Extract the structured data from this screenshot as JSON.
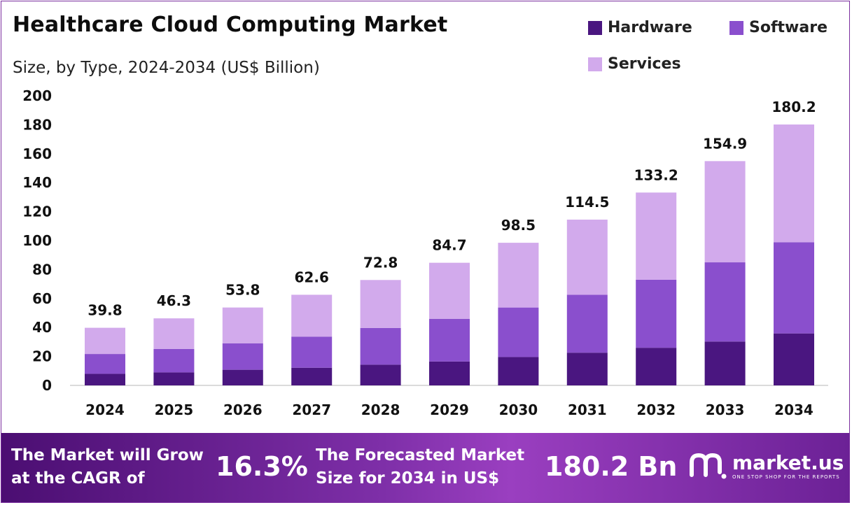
{
  "title": "Healthcare Cloud Computing Market",
  "subtitle": "Size, by Type, 2024-2034 (US$ Billion)",
  "colors": {
    "hardware": "#4a1680",
    "software": "#8a4fcd",
    "services": "#d2aaec",
    "accent": "#7b2f9f"
  },
  "chart_data": {
    "type": "bar",
    "stacked": true,
    "categories": [
      "2024",
      "2025",
      "2026",
      "2027",
      "2028",
      "2029",
      "2030",
      "2031",
      "2032",
      "2033",
      "2034"
    ],
    "series": [
      {
        "name": "Hardware",
        "values": [
          8.0,
          9.0,
          10.8,
          12.2,
          14.3,
          16.5,
          19.6,
          22.6,
          26.0,
          30.3,
          35.9
        ]
      },
      {
        "name": "Software",
        "values": [
          13.7,
          16.2,
          18.3,
          21.5,
          25.4,
          29.5,
          34.2,
          40.0,
          47.0,
          54.7,
          63.0
        ]
      },
      {
        "name": "Services",
        "values": [
          18.1,
          21.1,
          24.7,
          28.9,
          33.1,
          38.7,
          44.7,
          51.9,
          60.2,
          69.9,
          81.3
        ]
      }
    ],
    "totals": [
      "39.8",
      "46.3",
      "53.8",
      "62.6",
      "72.8",
      "84.7",
      "98.5",
      "114.5",
      "133.2",
      "154.9",
      "180.2"
    ],
    "ylim": [
      0,
      200
    ],
    "yticks": [
      "0",
      "20",
      "40",
      "60",
      "80",
      "100",
      "120",
      "140",
      "160",
      "180",
      "200"
    ],
    "legend": [
      "Hardware",
      "Software",
      "Services"
    ],
    "legend_position": "top-right",
    "grid": false
  },
  "banner": {
    "cagr_text": "The Market will Grow at the CAGR of",
    "cagr_value": "16.3%",
    "forecast_text": "The Forecasted Market Size for 2034 in US$",
    "forecast_value": "180.2 Bn",
    "brand_name": "market.us",
    "brand_tagline": "ONE STOP SHOP FOR THE REPORTS"
  }
}
